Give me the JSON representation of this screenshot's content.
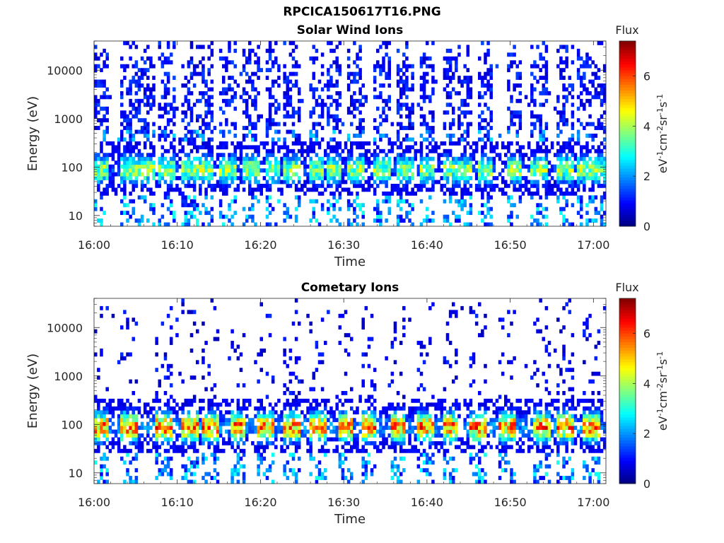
{
  "page": {
    "title": "RPCICA150617T16.PNG"
  },
  "chart_data": [
    {
      "type": "heatmap",
      "title": "Solar Wind Ions",
      "xlabel": "Time",
      "ylabel": "Energy (eV)",
      "x_ticks": [
        "16:00",
        "16:10",
        "16:20",
        "16:30",
        "16:40",
        "16:50",
        "17:00"
      ],
      "xlim_minutes": [
        0,
        61.5
      ],
      "y_ticks": [
        "10",
        "100",
        "1000",
        "10000"
      ],
      "y_scale": "log",
      "ylim": [
        6,
        40000
      ],
      "colorbar": {
        "title": "Flux",
        "label": "eV-1cm-2sr-1s-1",
        "ticks": [
          "0",
          "2",
          "4",
          "6"
        ],
        "range": [
          0,
          7.4
        ],
        "colormap": "jet"
      },
      "sweep_centers_minutes": [
        0.8,
        4.2,
        6.2,
        8.8,
        11.5,
        13.5,
        16.2,
        18.8,
        21.5,
        23.8,
        26.7,
        28.8,
        31.5,
        34.5,
        37.3,
        40.0,
        43.0,
        44.5,
        47.0,
        50.5,
        53.5,
        56.7,
        59.0,
        61.0
      ],
      "features": {
        "main_band_log_energy_center": 1.95,
        "main_band_peak_flux": 4.8,
        "high_energy_scatter_flux": 0.5
      }
    },
    {
      "type": "heatmap",
      "title": "Cometary Ions",
      "xlabel": "Time",
      "ylabel": "Energy (eV)",
      "x_ticks": [
        "16:00",
        "16:10",
        "16:20",
        "16:30",
        "16:40",
        "16:50",
        "17:00"
      ],
      "xlim_minutes": [
        0,
        61.5
      ],
      "y_ticks": [
        "10",
        "100",
        "1000",
        "10000"
      ],
      "y_scale": "log",
      "ylim": [
        6,
        40000
      ],
      "colorbar": {
        "title": "Flux",
        "label": "eV-1cm-2sr-1s-1",
        "ticks": [
          "0",
          "2",
          "4",
          "6"
        ],
        "range": [
          0,
          7.4
        ],
        "colormap": "jet"
      },
      "sweep_centers_minutes": [
        0.8,
        4.2,
        8.3,
        11.5,
        14.0,
        17.3,
        20.6,
        23.8,
        27.0,
        30.2,
        33.0,
        36.5,
        39.8,
        42.8,
        46.2,
        49.6,
        53.8,
        56.7,
        59.8
      ],
      "features": {
        "main_band_log_energy_center": 1.95,
        "main_band_peak_flux": 6.9,
        "high_energy_scatter_flux": 0.3
      }
    }
  ]
}
